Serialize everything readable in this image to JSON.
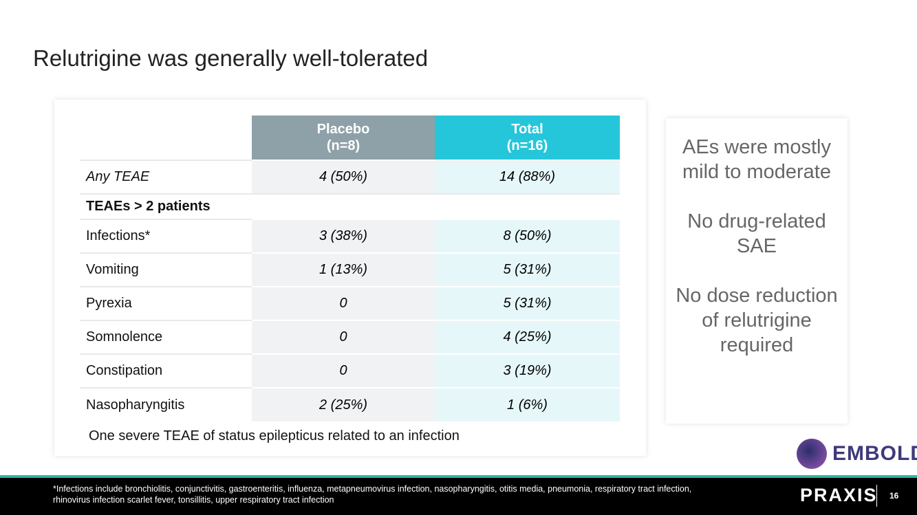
{
  "title": "Relutrigine was generally well-tolerated",
  "table": {
    "headers": [
      {
        "line1": "Placebo",
        "line2": "(n=8)"
      },
      {
        "line1": "Total",
        "line2": "(n=16)"
      }
    ],
    "any": {
      "label": "Any TEAE",
      "placebo": "4 (50%)",
      "total": "14 (88%)"
    },
    "section": "TEAEs > 2 patients",
    "rows": [
      {
        "label": "Infections*",
        "placebo": "3 (38%)",
        "total": "8 (50%)"
      },
      {
        "label": "Vomiting",
        "placebo": "1 (13%)",
        "total": "5 (31%)"
      },
      {
        "label": "Pyrexia",
        "placebo": "0",
        "total": "5 (31%)"
      },
      {
        "label": "Somnolence",
        "placebo": "0",
        "total": "4 (25%)"
      },
      {
        "label": "Constipation",
        "placebo": "0",
        "total": "3 (19%)"
      },
      {
        "label": "Nasopharyngitis",
        "placebo": "2 (25%)",
        "total": "1 (6%)"
      }
    ],
    "note": "One severe TEAE of status epilepticus related to an infection"
  },
  "side": [
    "AEs were mostly mild to moderate",
    "No drug-related SAE",
    "No dose reduction of relutrigine required"
  ],
  "logos": {
    "embold": "EMBOLD",
    "praxis": "PRAXIS"
  },
  "footnote": "*Infections include bronchiolitis, conjunctivitis, gastroenteritis, influenza, metapneumovirus infection, nasopharyngitis, otitis media, pneumonia, respiratory tract infection, rhinovirus infection scarlet fever, tonsillitis, upper respiratory tract infection",
  "page": "16",
  "colors": {
    "placebo": "#8fa1a8",
    "total": "#26c6da",
    "teal": "#2bb8a3"
  }
}
